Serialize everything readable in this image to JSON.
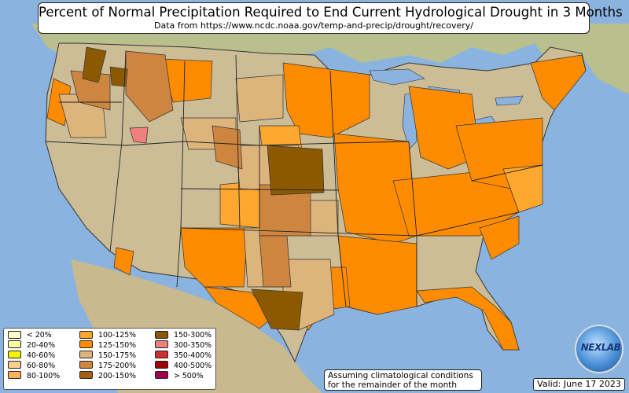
{
  "title": "Percent of Normal Precipitation Required to End Current Hydrological Drought in 3 Months",
  "subtitle": "Data from https://www.ncdc.noaa.gov/temp-and-precip/drought/recovery/",
  "legend": {
    "columns": [
      [
        {
          "label": "< 20%",
          "color": "#ffffcc"
        },
        {
          "label": "20-40%",
          "color": "#ffffa0"
        },
        {
          "label": "40-60%",
          "color": "#f8f400"
        },
        {
          "label": "60-80%",
          "color": "#fcd08c"
        },
        {
          "label": "80-100%",
          "color": "#fcb45c"
        }
      ],
      [
        {
          "label": "100-125%",
          "color": "#ffa830"
        },
        {
          "label": "125-150%",
          "color": "#ff8c00"
        },
        {
          "label": "150-175%",
          "color": "#dcb47c"
        },
        {
          "label": "175-200%",
          "color": "#cd853f"
        },
        {
          "label": "200-150%",
          "color": "#a86010"
        }
      ],
      [
        {
          "label": "150-300%",
          "color": "#8b5a00"
        },
        {
          "label": "300-350%",
          "color": "#f08080"
        },
        {
          "label": "350-400%",
          "color": "#cd3030"
        },
        {
          "label": "400-500%",
          "color": "#a00000"
        },
        {
          "label": "> 500%",
          "color": "#a0004c"
        }
      ]
    ]
  },
  "note_lines": [
    "Assuming climatological conditions",
    "for the remainder of the month"
  ],
  "valid": "Valid: June 17 2023",
  "logo_text": "NEXLAB",
  "colors": {
    "ocean": "#8ab4df",
    "land": "#cdbd96",
    "c100_125": "#ffa830",
    "c125_150": "#ff8c00",
    "c150_175": "#dcb47c",
    "c175_200": "#cd853f",
    "c200": "#a86010",
    "c150_300": "#8b5a00",
    "c300_350": "#f08080"
  }
}
